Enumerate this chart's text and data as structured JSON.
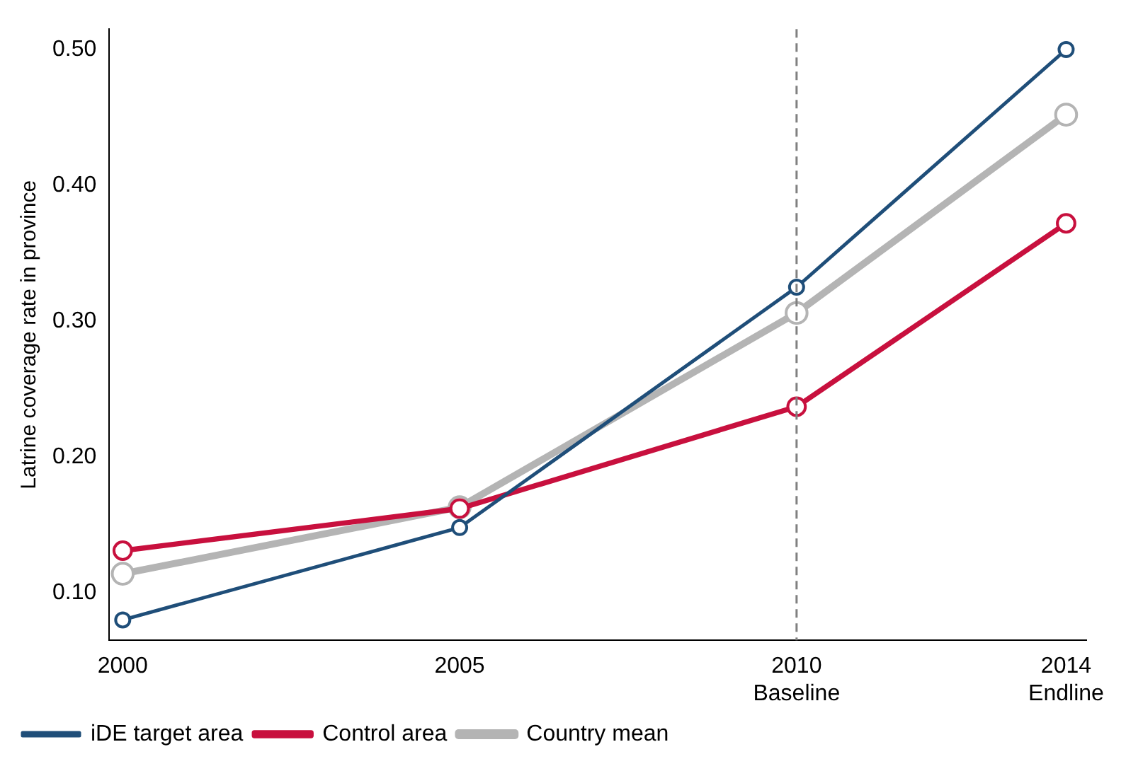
{
  "chart_data": {
    "type": "line",
    "ylabel": "Latrine coverage rate in province",
    "x": [
      2000,
      2005,
      2010,
      2014
    ],
    "series": [
      {
        "name": "iDE target area",
        "color": "#1f4e79",
        "values": [
          0.08,
          0.148,
          0.325,
          0.5
        ]
      },
      {
        "name": "Control area",
        "color": "#c8103e",
        "values": [
          0.131,
          0.162,
          0.237,
          0.372
        ]
      },
      {
        "name": "Country mean",
        "color": "#b4b4b4",
        "values": [
          0.114,
          0.163,
          0.306,
          0.452
        ]
      }
    ],
    "xlim": [
      1999.8,
      2014.3
    ],
    "xticks": [
      2000,
      2005,
      {
        "value": 2010,
        "label": "2010\nBaseline"
      },
      {
        "value": 2014,
        "label": "2014\nEndline"
      }
    ],
    "ylim": [
      0.065,
      0.515
    ],
    "yticks": [
      {
        "value": 0.1,
        "label": "0.10"
      },
      {
        "value": 0.2,
        "label": "0.20"
      },
      {
        "value": 0.3,
        "label": "0.30"
      },
      {
        "value": 0.4,
        "label": "0.40"
      },
      {
        "value": 0.5,
        "label": "0.50"
      }
    ],
    "ref_lines": [
      {
        "axis": "x",
        "value": 2010,
        "color": "#808080",
        "line_style": "dashed"
      }
    ],
    "grid": false,
    "legend": "bottom left",
    "marker": "circle",
    "line_style": "solid"
  }
}
